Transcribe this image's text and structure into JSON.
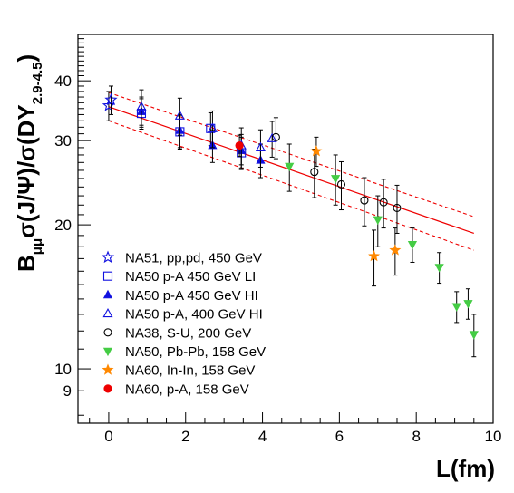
{
  "chart_data": {
    "type": "scatter",
    "title": "",
    "xlabel": "L(fm)",
    "ylabel": {
      "prefix": "B",
      "prefix_sub": "μμ",
      "main": "σ(J/Ψ)/σ(DY",
      "sub": "2.9-4.5",
      "suffix": ")"
    },
    "xlim": [
      -0.8,
      10
    ],
    "ylim": [
      7.7,
      50
    ],
    "y_scale": "log",
    "x_ticks": [
      0,
      2,
      4,
      6,
      8,
      10
    ],
    "y_ticks": [
      9,
      10,
      20,
      30,
      40
    ],
    "grid": false,
    "legend_position": "bottom-left",
    "series": [
      {
        "name": "NA51, pp,pd, 450 GeV",
        "marker": "star-open",
        "color": "#1010e0",
        "points": [
          {
            "x": 0.0,
            "y": 35.5,
            "err": 2.5
          },
          {
            "x": 0.06,
            "y": 36.5,
            "err": 2.5
          }
        ]
      },
      {
        "name": "NA50 p-A 450 GeV LI",
        "marker": "square-open",
        "color": "#1010e0",
        "points": [
          {
            "x": 0.85,
            "y": 34.2,
            "err": 2.5
          },
          {
            "x": 1.85,
            "y": 31.3,
            "err": 2.5
          },
          {
            "x": 2.65,
            "y": 31.8,
            "err": 2.5
          },
          {
            "x": 3.45,
            "y": 28.3,
            "err": 2.2
          }
        ]
      },
      {
        "name": "NA50 p-A 450 GeV HI",
        "marker": "triangle-up-filled",
        "color": "#1010e0",
        "points": [
          {
            "x": 0.85,
            "y": 34.5,
            "err": 2.5
          },
          {
            "x": 1.85,
            "y": 31.5,
            "err": 2.5
          },
          {
            "x": 2.7,
            "y": 29.3,
            "err": 2.3
          },
          {
            "x": 3.45,
            "y": 28.6,
            "err": 2.3
          },
          {
            "x": 3.95,
            "y": 27.3,
            "err": 2.2
          }
        ]
      },
      {
        "name": "NA50 p-A, 400 GeV HI",
        "marker": "triangle-up-open",
        "color": "#1010e0",
        "points": [
          {
            "x": 0.85,
            "y": 35.3,
            "err": 3.0
          },
          {
            "x": 1.85,
            "y": 33.8,
            "err": 3.0
          },
          {
            "x": 2.7,
            "y": 31.8,
            "err": 2.8
          },
          {
            "x": 3.45,
            "y": 29.3,
            "err": 2.6
          },
          {
            "x": 3.95,
            "y": 29.0,
            "err": 2.6
          },
          {
            "x": 4.25,
            "y": 30.3,
            "err": 2.6
          }
        ]
      },
      {
        "name": "NA38, S-U, 200 GeV",
        "marker": "circle-open",
        "color": "#000000",
        "points": [
          {
            "x": 4.35,
            "y": 30.5,
            "err": 3.0
          },
          {
            "x": 5.35,
            "y": 25.8,
            "err": 3.0
          },
          {
            "x": 6.05,
            "y": 24.3,
            "err": 2.8
          },
          {
            "x": 6.65,
            "y": 22.5,
            "err": 2.6
          },
          {
            "x": 7.15,
            "y": 22.3,
            "err": 2.6
          },
          {
            "x": 7.5,
            "y": 21.7,
            "err": 2.5
          }
        ]
      },
      {
        "name": "NA50, Pb-Pb, 158 GeV",
        "marker": "triangle-down-filled",
        "color": "#44cc44",
        "points": [
          {
            "x": 4.7,
            "y": 26.5,
            "err": 3.0
          },
          {
            "x": 5.9,
            "y": 25.0,
            "err": 3.0
          },
          {
            "x": 7.0,
            "y": 20.5,
            "err": 2.5
          },
          {
            "x": 7.9,
            "y": 18.2,
            "err": 1.5
          },
          {
            "x": 8.6,
            "y": 16.3,
            "err": 1.2
          },
          {
            "x": 9.05,
            "y": 13.5,
            "err": 1.0
          },
          {
            "x": 9.35,
            "y": 13.7,
            "err": 1.0
          },
          {
            "x": 9.5,
            "y": 11.8,
            "err": 1.2
          }
        ]
      },
      {
        "name": "NA60, In-In, 158 GeV",
        "marker": "star-filled",
        "color": "#ff8800",
        "points": [
          {
            "x": 5.4,
            "y": 28.5,
            "err": 2.0
          },
          {
            "x": 6.9,
            "y": 17.2,
            "err": 2.3
          },
          {
            "x": 7.45,
            "y": 17.7,
            "err": 2.0
          }
        ]
      },
      {
        "name": "NA60, p-A, 158 GeV",
        "marker": "circle-filled",
        "color": "#ee0000",
        "points": [
          {
            "x": 3.4,
            "y": 29.3,
            "err": 1.5
          }
        ]
      }
    ],
    "fit": {
      "color": "#ee0000",
      "center": {
        "x": [
          0,
          9.5
        ],
        "y": [
          35.3,
          19.2
        ]
      },
      "band_upper": {
        "x": [
          0,
          9.5
        ],
        "y": [
          37.8,
          20.8
        ]
      },
      "band_lower": {
        "x": [
          0,
          9.5
        ],
        "y": [
          33.0,
          17.7
        ]
      }
    }
  }
}
